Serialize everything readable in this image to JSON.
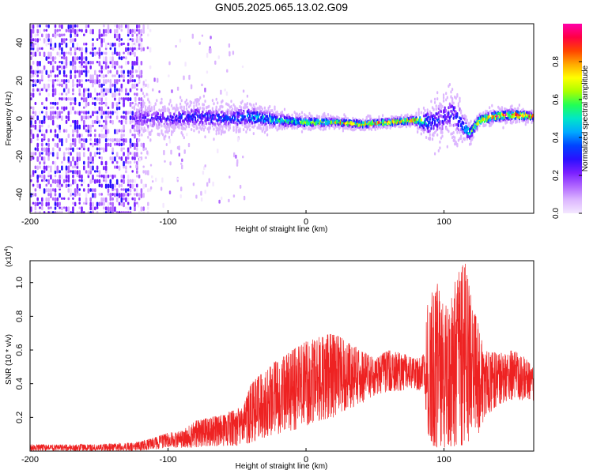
{
  "title": "GN05.2025.065.13.02.G09",
  "colors": {
    "snr_line": "#ee2222",
    "spectrogram_background": "#ffffff",
    "colormap": [
      "#f4e8ff",
      "#dcb6ff",
      "#b066ff",
      "#7a1fff",
      "#2a10ff",
      "#0044ff",
      "#00aaff",
      "#00e6c8",
      "#22ff55",
      "#aaff00",
      "#ffff00",
      "#ffaa00",
      "#ff4400",
      "#ff0044",
      "#ff00aa"
    ]
  },
  "chart_data": [
    {
      "type": "heatmap",
      "title": "GN05.2025.065.13.02.G09",
      "xlabel": "Height of straight line (km)",
      "ylabel": "Frequency (Hz)",
      "xlim": [
        -200,
        165
      ],
      "ylim": [
        -50,
        50
      ],
      "xticks": [
        "-200",
        "-100",
        "0",
        "100"
      ],
      "xtick_values": [
        -200,
        -100,
        0,
        100
      ],
      "yticks": [
        "-40",
        "-20",
        "0",
        "20",
        "40"
      ],
      "ytick_values": [
        -40,
        -20,
        0,
        20,
        40
      ],
      "colorbar": {
        "label": "Normalized spectral amplitude",
        "range": [
          0,
          1
        ],
        "ticks": [
          "0.0",
          "0.2",
          "0.4",
          "0.6",
          "0.8"
        ],
        "tick_values": [
          0.0,
          0.2,
          0.4,
          0.6,
          0.8
        ]
      },
      "ridge": {
        "x": [
          -125,
          -100,
          -80,
          -60,
          -40,
          -20,
          0,
          20,
          40,
          60,
          78,
          90,
          100,
          107,
          112,
          118,
          125,
          135,
          150,
          165
        ],
        "freq": [
          0,
          0,
          1,
          0,
          1,
          -1,
          -2,
          -2,
          -3,
          -2,
          -1,
          -2,
          1,
          3,
          -2,
          -8,
          -1,
          1,
          2,
          1
        ],
        "spread": [
          10,
          9,
          9,
          8,
          8,
          5,
          4,
          3,
          3,
          3,
          3,
          12,
          14,
          16,
          10,
          6,
          4,
          4,
          4,
          3
        ],
        "peak_amplitude": [
          0.25,
          0.3,
          0.35,
          0.35,
          0.45,
          0.55,
          0.65,
          0.75,
          0.85,
          0.85,
          0.8,
          0.4,
          0.3,
          0.3,
          0.45,
          0.6,
          0.8,
          0.9,
          0.95,
          0.9
        ]
      },
      "noise_region": {
        "x": [
          -200,
          -125
        ],
        "amplitude": [
          0.05,
          0.3
        ]
      }
    },
    {
      "type": "line",
      "xlabel": "Height of straight line (km)",
      "ylabel": "SNR (10 * v/v)",
      "y_multiplier": "(x10",
      "y_multiplier_exponent": "4",
      "y_multiplier_close": ")",
      "xlim": [
        -200,
        165
      ],
      "ylim": [
        0,
        1.13
      ],
      "xticks": [
        "-200",
        "-100",
        "0",
        "100"
      ],
      "xtick_values": [
        -200,
        -100,
        0,
        100
      ],
      "yticks": [
        "0.2",
        "0.4",
        "0.6",
        "0.8",
        "1.0"
      ],
      "ytick_values": [
        0.2,
        0.4,
        0.6,
        0.8,
        1.0
      ],
      "series": [
        {
          "envelope_x": [
            -200,
            -150,
            -125,
            -110,
            -100,
            -90,
            -80,
            -70,
            -60,
            -50,
            -45,
            -40,
            -30,
            -20,
            -10,
            0,
            10,
            20,
            30,
            40,
            50,
            60,
            70,
            80,
            86,
            88,
            95,
            100,
            105,
            110,
            115,
            120,
            125,
            130,
            140,
            150,
            160,
            165
          ],
          "envelope_min": [
            0.0,
            0.0,
            0.0,
            0.01,
            0.02,
            0.02,
            0.02,
            0.03,
            0.03,
            0.03,
            0.03,
            0.05,
            0.08,
            0.1,
            0.12,
            0.15,
            0.18,
            0.2,
            0.25,
            0.28,
            0.33,
            0.35,
            0.36,
            0.36,
            0.36,
            0.05,
            0.02,
            0.02,
            0.02,
            0.02,
            0.03,
            0.05,
            0.1,
            0.2,
            0.28,
            0.3,
            0.3,
            0.3
          ],
          "envelope_max": [
            0.04,
            0.04,
            0.05,
            0.08,
            0.11,
            0.12,
            0.18,
            0.2,
            0.22,
            0.25,
            0.28,
            0.4,
            0.48,
            0.55,
            0.6,
            0.65,
            0.68,
            0.7,
            0.65,
            0.6,
            0.55,
            0.6,
            0.58,
            0.55,
            0.58,
            0.9,
            1.0,
            0.85,
            0.95,
            1.05,
            1.13,
            0.9,
            0.75,
            0.6,
            0.58,
            0.6,
            0.55,
            0.5
          ]
        }
      ]
    }
  ]
}
